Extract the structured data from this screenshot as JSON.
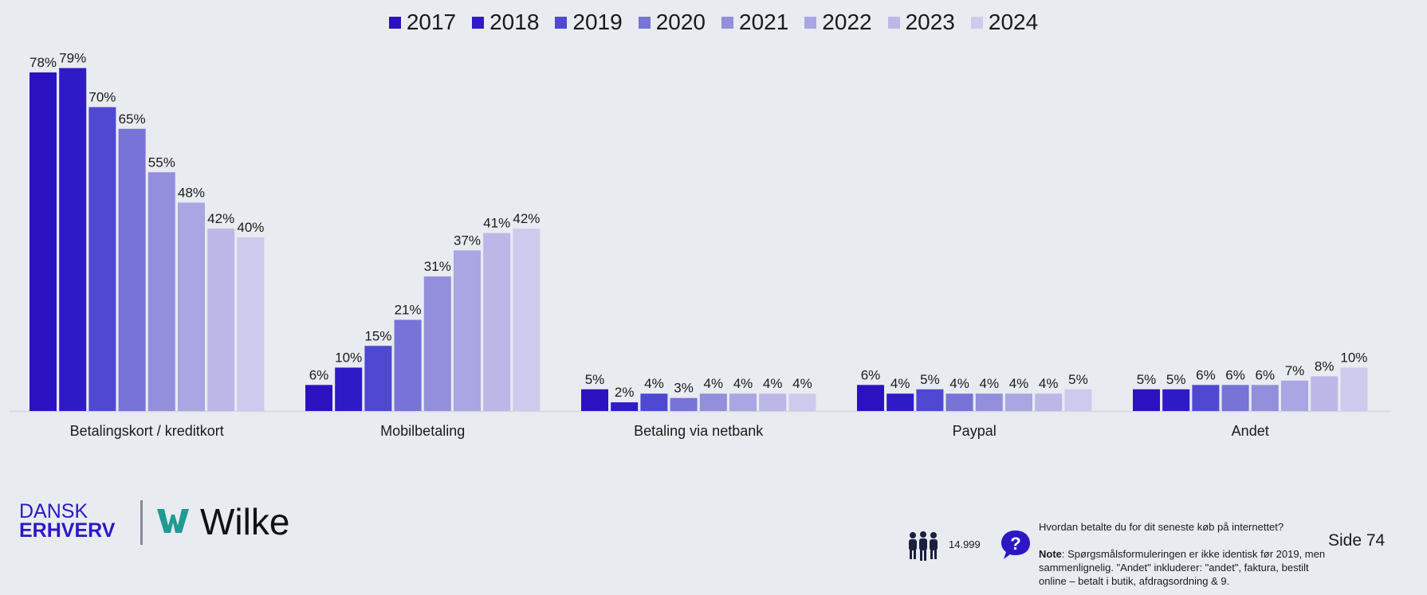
{
  "chart_data": {
    "type": "bar",
    "categories": [
      "Betalingskort / kreditkort",
      "Mobilbetaling",
      "Betaling via netbank",
      "Paypal",
      "Andet"
    ],
    "series": [
      {
        "name": "2017",
        "color": "#2b12c0",
        "values": [
          78,
          6,
          5,
          6,
          5
        ]
      },
      {
        "name": "2018",
        "color": "#2f1ac8",
        "values": [
          79,
          10,
          2,
          4,
          5
        ]
      },
      {
        "name": "2019",
        "color": "#4f48d1",
        "values": [
          70,
          15,
          4,
          5,
          6
        ]
      },
      {
        "name": "2020",
        "color": "#7873d6",
        "values": [
          65,
          21,
          3,
          4,
          6
        ]
      },
      {
        "name": "2021",
        "color": "#938fdc",
        "values": [
          55,
          31,
          4,
          4,
          6
        ]
      },
      {
        "name": "2022",
        "color": "#aaa6e3",
        "values": [
          48,
          37,
          4,
          4,
          7
        ]
      },
      {
        "name": "2023",
        "color": "#bbb8e8",
        "values": [
          42,
          41,
          4,
          4,
          8
        ]
      },
      {
        "name": "2024",
        "color": "#cdcaee",
        "values": [
          40,
          42,
          4,
          5,
          10
        ]
      }
    ],
    "value_suffix": "%",
    "ylim": [
      0,
      80
    ],
    "grid": false,
    "legend_position": "top-center"
  },
  "footer": {
    "logo_line1": "DANSK",
    "logo_line2": "ERHVERV",
    "brand": "Wilke",
    "sample_size": "14.999",
    "question": "Hvordan betalte du for dit seneste køb på internettet?",
    "note_label": "Note",
    "note_text": ": Spørgsmålsformuleringen er ikke identisk før 2019, men sammenlignelig. \"Andet\" inkluderer: \"andet\", faktura, bestilt online – betalt i butik, afdragsordning & 9.",
    "page": "Side  74"
  },
  "colors": {
    "background": "#e8ebf0",
    "brand_blue": "#2b18c4",
    "wilke_teal": "#1f9a95"
  },
  "icons": [
    "people-icon",
    "question-bubble-icon",
    "wilke-w-icon"
  ]
}
